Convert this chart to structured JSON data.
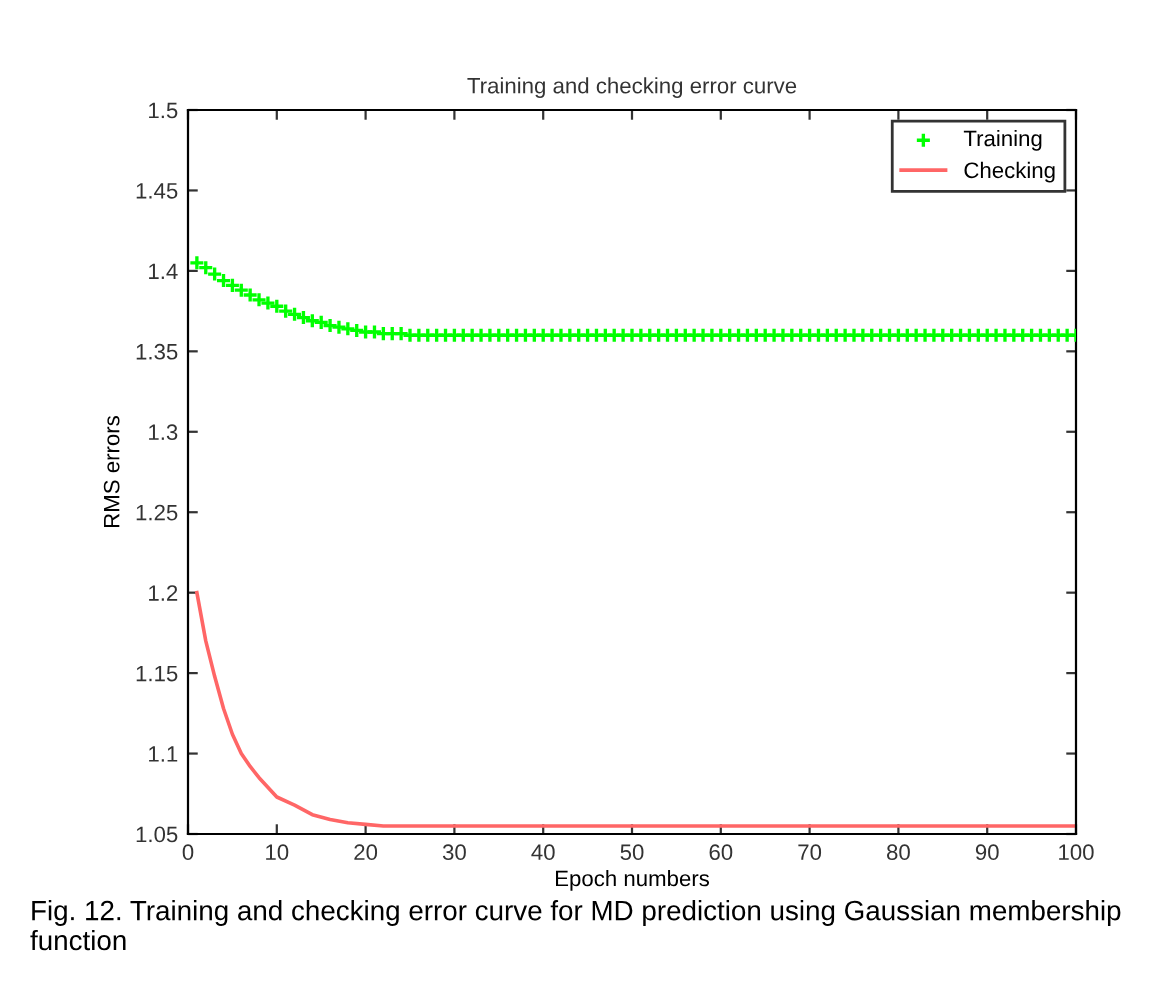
{
  "chart_data": {
    "type": "line",
    "title": "Training and checking error curve",
    "xlabel": "Epoch numbers",
    "ylabel": "RMS errors",
    "annotations": [
      "Fig. 12. Training and checking error curve for MD prediction using Gaussian membership function"
    ],
    "xlim": [
      0,
      100
    ],
    "ylim": [
      1.05,
      1.5
    ],
    "xticks": [
      0,
      10,
      20,
      30,
      40,
      50,
      60,
      70,
      80,
      90,
      100
    ],
    "yticks": [
      1.05,
      1.1,
      1.15,
      1.2,
      1.25,
      1.3,
      1.35,
      1.4,
      1.45,
      1.5
    ],
    "grid": false,
    "legend": "top right",
    "series": [
      {
        "name": "Training",
        "type": "scatter",
        "marker": "cross",
        "color": "#00ff00",
        "x": [
          1,
          2,
          3,
          4,
          5,
          6,
          7,
          8,
          9,
          10,
          11,
          12,
          13,
          14,
          15,
          16,
          17,
          18,
          19,
          20,
          21,
          22,
          23,
          24,
          25,
          26,
          27,
          28,
          29,
          30,
          31,
          32,
          33,
          34,
          35,
          36,
          37,
          38,
          39,
          40,
          41,
          42,
          43,
          44,
          45,
          46,
          47,
          48,
          49,
          50,
          51,
          52,
          53,
          54,
          55,
          56,
          57,
          58,
          59,
          60,
          61,
          62,
          63,
          64,
          65,
          66,
          67,
          68,
          69,
          70,
          71,
          72,
          73,
          74,
          75,
          76,
          77,
          78,
          79,
          80,
          81,
          82,
          83,
          84,
          85,
          86,
          87,
          88,
          89,
          90,
          91,
          92,
          93,
          94,
          95,
          96,
          97,
          98,
          99,
          100
        ],
        "values": [
          1.405,
          1.402,
          1.398,
          1.394,
          1.391,
          1.388,
          1.385,
          1.382,
          1.38,
          1.378,
          1.375,
          1.373,
          1.371,
          1.369,
          1.368,
          1.366,
          1.365,
          1.364,
          1.363,
          1.362,
          1.362,
          1.361,
          1.361,
          1.361,
          1.36,
          1.36,
          1.36,
          1.36,
          1.36,
          1.36,
          1.36,
          1.36,
          1.36,
          1.36,
          1.36,
          1.36,
          1.36,
          1.36,
          1.36,
          1.36,
          1.36,
          1.36,
          1.36,
          1.36,
          1.36,
          1.36,
          1.36,
          1.36,
          1.36,
          1.36,
          1.36,
          1.36,
          1.36,
          1.36,
          1.36,
          1.36,
          1.36,
          1.36,
          1.36,
          1.36,
          1.36,
          1.36,
          1.36,
          1.36,
          1.36,
          1.36,
          1.36,
          1.36,
          1.36,
          1.36,
          1.36,
          1.36,
          1.36,
          1.36,
          1.36,
          1.36,
          1.36,
          1.36,
          1.36,
          1.36,
          1.36,
          1.36,
          1.36,
          1.36,
          1.36,
          1.36,
          1.36,
          1.36,
          1.36,
          1.36,
          1.36,
          1.36,
          1.36,
          1.36,
          1.36,
          1.36,
          1.36,
          1.36,
          1.36,
          1.36
        ]
      },
      {
        "name": "Checking",
        "line_style": "solid",
        "color": "#ff6666",
        "x": [
          1,
          2,
          3,
          4,
          5,
          6,
          7,
          8,
          10,
          12,
          14,
          16,
          18,
          20,
          22,
          25,
          30,
          40,
          60,
          80,
          100
        ],
        "values": [
          1.2,
          1.17,
          1.148,
          1.128,
          1.112,
          1.1,
          1.092,
          1.085,
          1.073,
          1.068,
          1.062,
          1.059,
          1.057,
          1.056,
          1.055,
          1.055,
          1.055,
          1.055,
          1.055,
          1.055,
          1.055
        ]
      }
    ]
  }
}
